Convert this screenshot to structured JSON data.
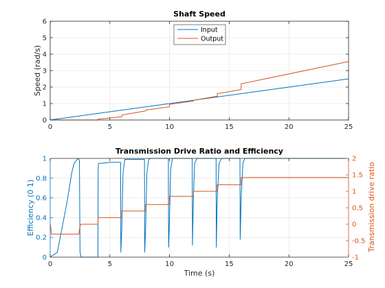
{
  "figure": {
    "background": "#ffffff",
    "axes_color": "#262626",
    "grid_color": "#dfdfdf"
  },
  "chart_data": [
    {
      "type": "line",
      "title": "Shaft Speed",
      "xlabel": "",
      "ylabel": "Speed (rad/s)",
      "xlim": [
        0,
        25
      ],
      "ylim": [
        0,
        6
      ],
      "xticks": [
        0,
        5,
        10,
        15,
        20,
        25
      ],
      "yticks": [
        0,
        1,
        2,
        3,
        4,
        5,
        6
      ],
      "grid": true,
      "legend": {
        "placement": "top-center",
        "entries": [
          "Input",
          "Output"
        ]
      },
      "series": [
        {
          "name": "Input",
          "color": "#0072bd",
          "x": [
            0,
            25
          ],
          "y": [
            0,
            2.5
          ]
        },
        {
          "name": "Output",
          "color": "#d95319",
          "x": [
            0,
            4.0,
            4.0,
            6.0,
            6.0,
            8.0,
            8.0,
            10.0,
            10.0,
            12.0,
            12.0,
            14.0,
            14.0,
            16.0,
            16.0,
            25.0
          ],
          "y": [
            0,
            0,
            0.05,
            0.2,
            0.3,
            0.55,
            0.6,
            0.8,
            0.95,
            1.15,
            1.2,
            1.45,
            1.6,
            1.85,
            2.2,
            3.55
          ]
        }
      ]
    },
    {
      "type": "line",
      "title": "Transmission Drive Ratio and Efficiency",
      "xlabel": "Time (s)",
      "ylabel": "Efficiency (0 1)",
      "ylabel_right": "Transmission drive ratio",
      "xlim": [
        0,
        25
      ],
      "ylim": [
        0,
        1
      ],
      "ylim_right": [
        -1,
        2
      ],
      "xticks": [
        0,
        5,
        10,
        15,
        20,
        25
      ],
      "yticks": [
        0,
        0.2,
        0.4,
        0.6,
        0.8,
        1
      ],
      "yticks_right": [
        -1,
        -0.5,
        0,
        0.5,
        1,
        1.5,
        2
      ],
      "grid": true,
      "left_axis_color": "#0072bd",
      "right_axis_color": "#d95319",
      "series": [
        {
          "axis": "left",
          "color": "#0072bd",
          "x": [
            0,
            0.6,
            1.0,
            1.4,
            1.8,
            2.0,
            2.2,
            2.35,
            2.45,
            2.5,
            2.6,
            2.8,
            3.0,
            4.0,
            4.02,
            4.05,
            4.3,
            5.0,
            5.9,
            5.92,
            6.0,
            6.1,
            6.25,
            6.4,
            7.9,
            7.92,
            8.0,
            8.1,
            8.25,
            8.4,
            9.9,
            9.92,
            10.0,
            10.1,
            10.25,
            10.4,
            11.9,
            11.92,
            12.0,
            12.1,
            12.3,
            13.9,
            13.92,
            14.0,
            14.15,
            14.35,
            15.9,
            15.92,
            16.0,
            16.15,
            16.3,
            25
          ],
          "y": [
            0,
            0.05,
            0.3,
            0.55,
            0.85,
            0.95,
            0.98,
            1.0,
            0.98,
            0.05,
            0.0,
            0.0,
            0.0,
            0.0,
            0.9,
            0.95,
            0.95,
            0.96,
            0.96,
            0.05,
            0.3,
            0.85,
            0.99,
            0.99,
            0.99,
            0.05,
            0.3,
            0.85,
            0.99,
            1.0,
            1.0,
            0.1,
            0.4,
            0.9,
            1.0,
            1.0,
            1.0,
            0.12,
            0.6,
            0.95,
            1.0,
            1.0,
            0.1,
            0.6,
            0.95,
            1.0,
            1.0,
            0.18,
            0.6,
            0.95,
            1.0,
            1.0
          ]
        },
        {
          "axis": "right",
          "color": "#d95319",
          "x": [
            0,
            0.05,
            0.1,
            2.4,
            2.5,
            2.6,
            4.0,
            4.0,
            6.0,
            6.0,
            8.0,
            8.0,
            10.0,
            10.0,
            12.0,
            12.0,
            14.0,
            14.0,
            16.0,
            16.0,
            25
          ],
          "y": [
            0,
            -0.1,
            -0.3,
            -0.3,
            -0.05,
            0.0,
            0.0,
            0.2,
            0.2,
            0.4,
            0.4,
            0.6,
            0.6,
            0.85,
            0.85,
            1.0,
            1.0,
            1.2,
            1.2,
            1.42,
            1.42
          ]
        }
      ]
    }
  ]
}
